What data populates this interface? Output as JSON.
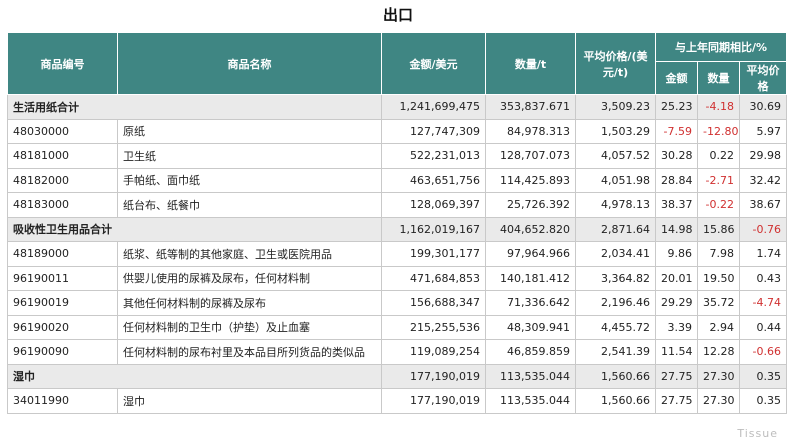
{
  "title": "出口",
  "headers": {
    "code": "商品编号",
    "name": "商品名称",
    "amount": "金额/美元",
    "qty": "数量/t",
    "avg_price": "平均价格/(美元/t)",
    "yoy_group": "与上年同期相比/%",
    "yoy_amount": "金额",
    "yoy_qty": "数量",
    "yoy_price": "平均价格"
  },
  "rows": [
    {
      "group": true,
      "code": "生活用纸合计",
      "name": "",
      "amount": "1,241,699,475",
      "qty": "353,837.671",
      "price": "3,509.23",
      "yoy_amount": "25.23",
      "yoy_qty": "-4.18",
      "yoy_price": "30.69"
    },
    {
      "group": false,
      "code": "48030000",
      "name": "原纸",
      "amount": "127,747,309",
      "qty": "84,978.313",
      "price": "1,503.29",
      "yoy_amount": "-7.59",
      "yoy_qty": "-12.80",
      "yoy_price": "5.97"
    },
    {
      "group": false,
      "code": "48181000",
      "name": "卫生纸",
      "amount": "522,231,013",
      "qty": "128,707.073",
      "price": "4,057.52",
      "yoy_amount": "30.28",
      "yoy_qty": "0.22",
      "yoy_price": "29.98"
    },
    {
      "group": false,
      "code": "48182000",
      "name": "手帕纸、面巾纸",
      "amount": "463,651,756",
      "qty": "114,425.893",
      "price": "4,051.98",
      "yoy_amount": "28.84",
      "yoy_qty": "-2.71",
      "yoy_price": "32.42"
    },
    {
      "group": false,
      "code": "48183000",
      "name": "纸台布、纸餐巾",
      "amount": "128,069,397",
      "qty": "25,726.392",
      "price": "4,978.13",
      "yoy_amount": "38.37",
      "yoy_qty": "-0.22",
      "yoy_price": "38.67"
    },
    {
      "group": true,
      "code": "吸收性卫生用品合计",
      "name": "",
      "amount": "1,162,019,167",
      "qty": "404,652.820",
      "price": "2,871.64",
      "yoy_amount": "14.98",
      "yoy_qty": "15.86",
      "yoy_price": "-0.76"
    },
    {
      "group": false,
      "code": "48189000",
      "name": "纸浆、纸等制的其他家庭、卫生或医院用品",
      "amount": "199,301,177",
      "qty": "97,964.966",
      "price": "2,034.41",
      "yoy_amount": "9.86",
      "yoy_qty": "7.98",
      "yoy_price": "1.74"
    },
    {
      "group": false,
      "code": "96190011",
      "name": "供婴儿使用的尿裤及尿布，任何材料制",
      "amount": "471,684,853",
      "qty": "140,181.412",
      "price": "3,364.82",
      "yoy_amount": "20.01",
      "yoy_qty": "19.50",
      "yoy_price": "0.43"
    },
    {
      "group": false,
      "code": "96190019",
      "name": "其他任何材料制的尿裤及尿布",
      "amount": "156,688,347",
      "qty": "71,336.642",
      "price": "2,196.46",
      "yoy_amount": "29.29",
      "yoy_qty": "35.72",
      "yoy_price": "-4.74"
    },
    {
      "group": false,
      "code": "96190020",
      "name": "任何材料制的卫生巾（护垫）及止血塞",
      "amount": "215,255,536",
      "qty": "48,309.941",
      "price": "4,455.72",
      "yoy_amount": "3.39",
      "yoy_qty": "2.94",
      "yoy_price": "0.44"
    },
    {
      "group": false,
      "code": "96190090",
      "name": "任何材料制的尿布衬里及本品目所列货品的类似品",
      "amount": "119,089,254",
      "qty": "46,859.859",
      "price": "2,541.39",
      "yoy_amount": "11.54",
      "yoy_qty": "12.28",
      "yoy_price": "-0.66"
    },
    {
      "group": true,
      "code": "湿巾",
      "name": "",
      "amount": "177,190,019",
      "qty": "113,535.044",
      "price": "1,560.66",
      "yoy_amount": "27.75",
      "yoy_qty": "27.30",
      "yoy_price": "0.35"
    },
    {
      "group": false,
      "code": "34011990",
      "name": "湿巾",
      "amount": "177,190,019",
      "qty": "113,535.044",
      "price": "1,560.66",
      "yoy_amount": "27.75",
      "yoy_qty": "27.30",
      "yoy_price": "0.35"
    }
  ],
  "colors": {
    "header_bg": "#3f8683",
    "negative": "#d03030",
    "group_bg": "#eaeaea"
  }
}
